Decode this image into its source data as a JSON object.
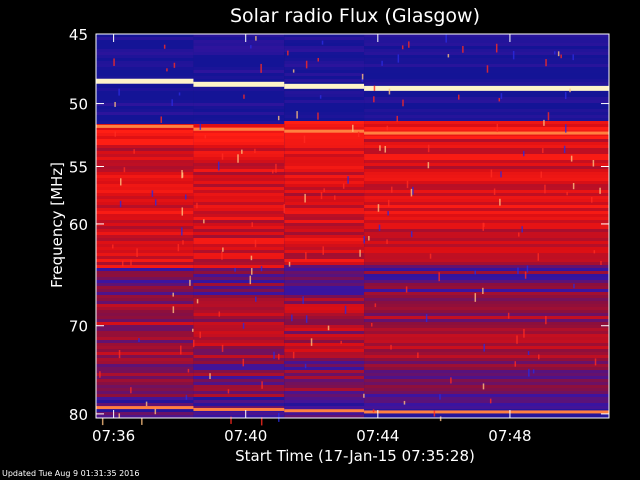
{
  "chart_data": {
    "type": "heatmap",
    "title": "Solar radio Flux (Glasgow)",
    "xlabel": "Start Time (17-Jan-15 07:35:28)",
    "ylabel": "Frequency [MHz]",
    "x_ticks": [
      "07:36",
      "07:40",
      "07:44",
      "07:48"
    ],
    "y_ticks": [
      45,
      50,
      55,
      60,
      70,
      80
    ],
    "ylim": [
      45,
      80.5
    ],
    "y_scale": "log",
    "xlim": [
      "07:35:28",
      "07:51:00"
    ],
    "colors": {
      "background": "#000000",
      "low": "#1a1aa8",
      "mid": "#8a1030",
      "high": "#ff1010",
      "peak": "#fff4c8"
    },
    "bright_bands_mhz": [
      48.3,
      51.8,
      79.3
    ],
    "time_step_boundaries": [
      "07:38:25",
      "07:41:10",
      "07:43:35"
    ]
  },
  "footer": {
    "updated": "Updated Tue Aug  9 01:31:35 2016"
  }
}
